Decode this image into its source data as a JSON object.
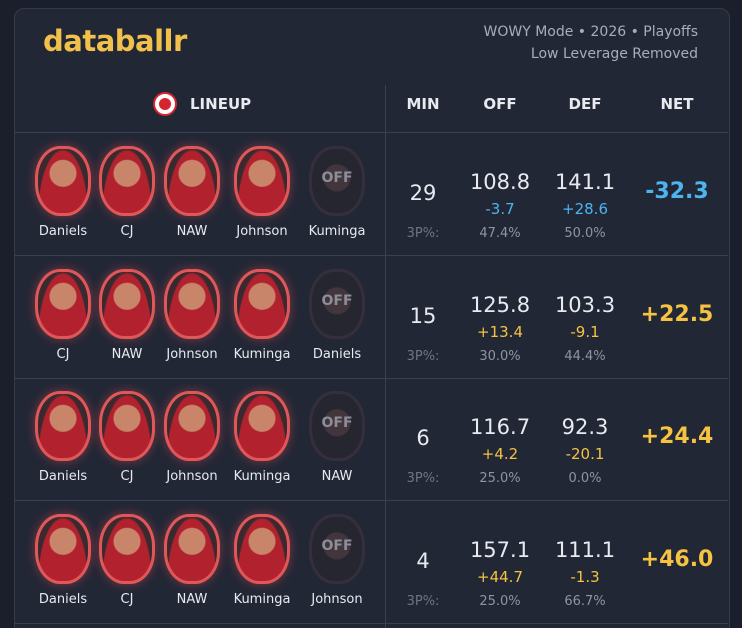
{
  "header": {
    "brand": "databallr",
    "subtitle": [
      "WOWY Mode • 2026 • Playoffs",
      "Low Leverage Removed"
    ]
  },
  "columns": {
    "lineup": "LINEUP",
    "min": "MIN",
    "off": "OFF",
    "def": "DEF",
    "net": "NET"
  },
  "rows": [
    {
      "players": [
        "Daniels",
        "CJ",
        "NAW",
        "Johnson"
      ],
      "off_player": "Kuminga",
      "off_tag": "OFF",
      "min": "29",
      "off": "108.8",
      "off_diff": "-3.7",
      "def": "141.1",
      "def_diff": "+28.6",
      "net": "-32.3",
      "three_label": "3P%:",
      "off_3p": "47.4%",
      "def_3p": "50.0%",
      "accent": "#4cb4ee"
    },
    {
      "players": [
        "CJ",
        "NAW",
        "Johnson",
        "Kuminga"
      ],
      "off_player": "Daniels",
      "off_tag": "OFF",
      "min": "15",
      "off": "125.8",
      "off_diff": "+13.4",
      "def": "103.3",
      "def_diff": "-9.1",
      "net": "+22.5",
      "three_label": "3P%:",
      "off_3p": "30.0%",
      "def_3p": "44.4%",
      "accent": "#f5c242"
    },
    {
      "players": [
        "Daniels",
        "CJ",
        "Johnson",
        "Kuminga"
      ],
      "off_player": "NAW",
      "off_tag": "OFF",
      "min": "6",
      "off": "116.7",
      "off_diff": "+4.2",
      "def": "92.3",
      "def_diff": "-20.1",
      "net": "+24.4",
      "three_label": "3P%:",
      "off_3p": "25.0%",
      "def_3p": "0.0%",
      "accent": "#f5c242"
    },
    {
      "players": [
        "Daniels",
        "CJ",
        "NAW",
        "Kuminga"
      ],
      "off_player": "Johnson",
      "off_tag": "OFF",
      "min": "4",
      "off": "157.1",
      "off_diff": "+44.7",
      "def": "111.1",
      "def_diff": "-1.3",
      "net": "+46.0",
      "three_label": "3P%:",
      "off_3p": "25.0%",
      "def_3p": "66.7%",
      "accent": "#f5c242"
    }
  ]
}
